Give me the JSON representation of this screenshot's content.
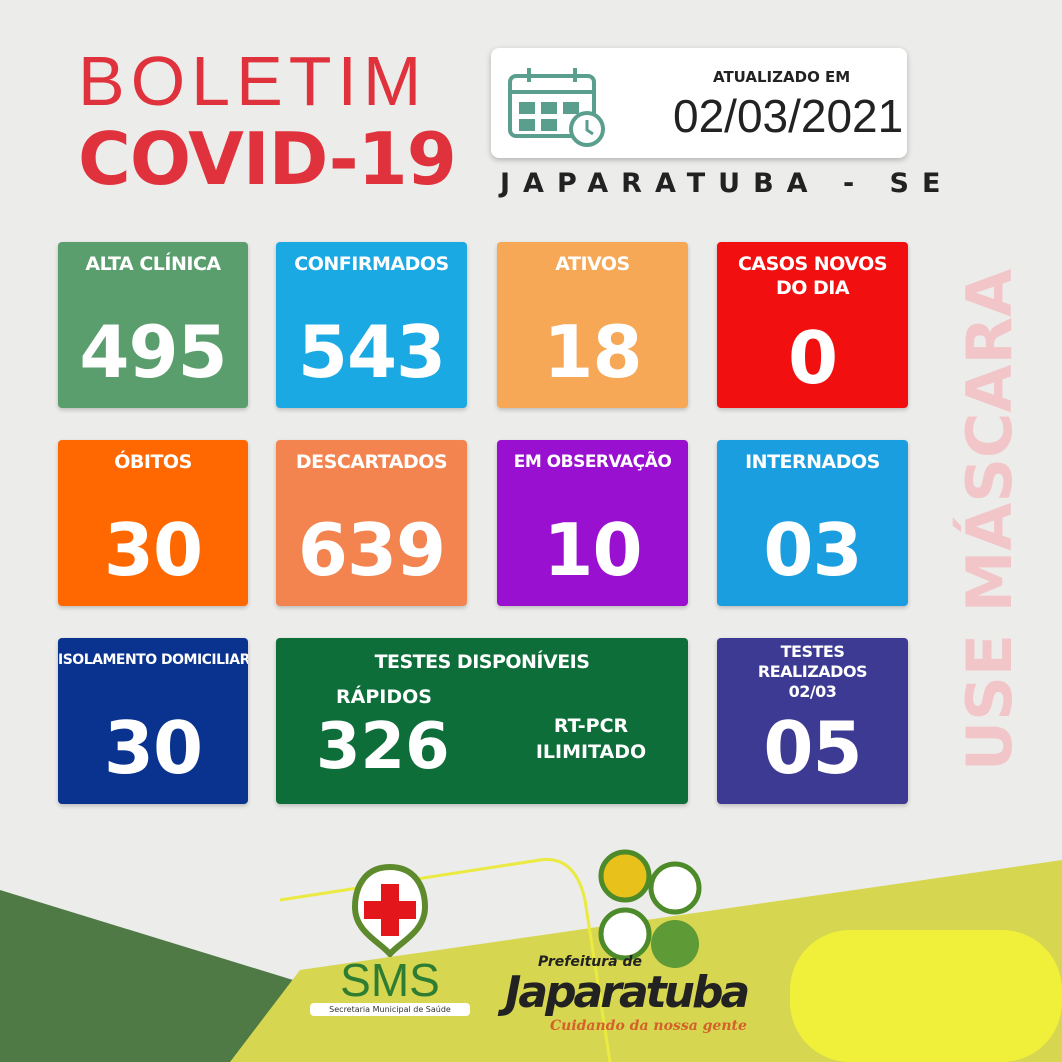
{
  "header": {
    "title_line1": "BOLETIM",
    "title_line2": "COVID-19",
    "updated_label": "ATUALIZADO EM",
    "updated_date": "02/03/2021",
    "city": "JAPARATUBA - SE"
  },
  "cards": [
    {
      "label": "ALTA CLÍNICA",
      "value": "495",
      "color": "#5a9e6e"
    },
    {
      "label": "CONFIRMADOS",
      "value": "543",
      "color": "#1ba9e4"
    },
    {
      "label": "ATIVOS",
      "value": "18",
      "color": "#f6a857"
    },
    {
      "label": "CASOS NOVOS DO DIA",
      "value": "0",
      "color": "#f20f0f"
    },
    {
      "label": "ÓBITOS",
      "value": "30",
      "color": "#ff6800"
    },
    {
      "label": "DESCARTADOS",
      "value": "639",
      "color": "#f3844f"
    },
    {
      "label": "EM OBSERVAÇÃO",
      "value": "10",
      "color": "#9a10d0"
    },
    {
      "label": "INTERNADOS",
      "value": "03",
      "color": "#1b9ee0"
    },
    {
      "label": "ISOLAMENTO DOMICILIAR",
      "value": "30",
      "color": "#0a3390"
    },
    {
      "label": "TESTES REALIZADOS 02/03",
      "value": "05",
      "color": "#3c3a92"
    }
  ],
  "tests": {
    "label": "TESTES DISPONÍVEIS",
    "rapid_label": "RÁPIDOS",
    "rapid_value": "326",
    "pcr_label": "RT-PCR",
    "pcr_value": "ILIMITADO",
    "color": "#0e6e3a"
  },
  "side_text": "USE MÁSCARA",
  "logos": {
    "sms": "SMS",
    "sms_sub": "Secretaria Municipal de Saúde",
    "pref_top": "Prefeitura de",
    "pref_name": "Japaratuba",
    "pref_slogan": "Cuidando da nossa gente"
  }
}
